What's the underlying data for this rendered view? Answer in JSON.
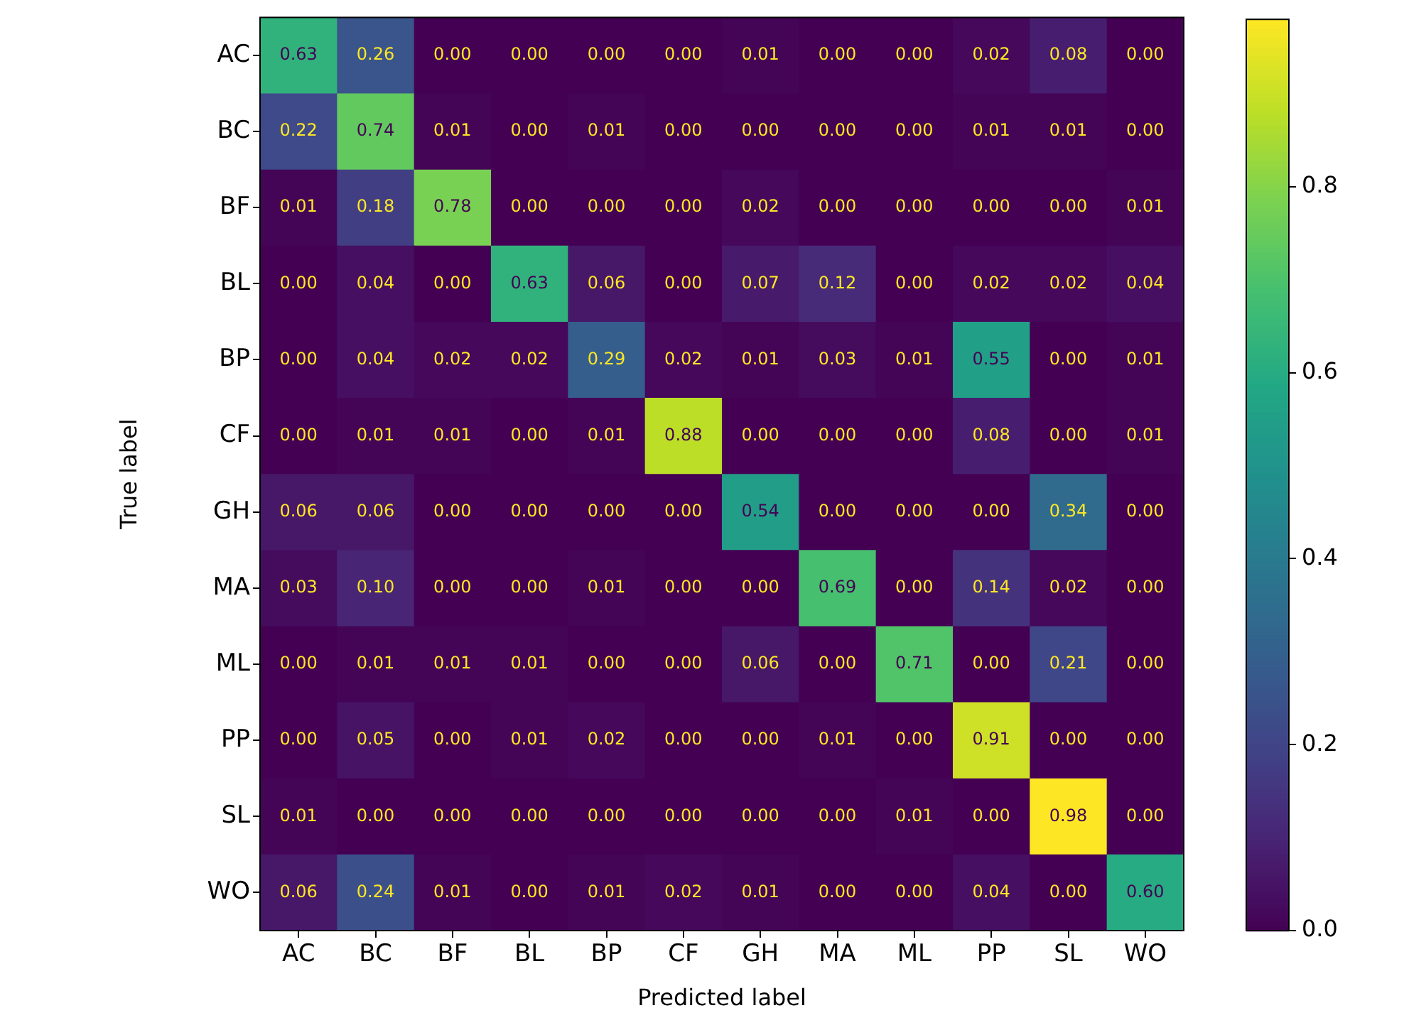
{
  "chart_data": {
    "type": "heatmap",
    "xlabel": "Predicted label",
    "ylabel": "True label",
    "categories": [
      "AC",
      "BC",
      "BF",
      "BL",
      "BP",
      "CF",
      "GH",
      "MA",
      "ML",
      "PP",
      "SL",
      "WO"
    ],
    "y_categories": [
      "AC",
      "BC",
      "BF",
      "BL",
      "BP",
      "CF",
      "GH",
      "MA",
      "ML",
      "PP",
      "SL",
      "WO"
    ],
    "cells": [
      [
        0.63,
        0.26,
        0,
        0,
        0,
        0,
        0.01,
        0,
        0,
        0.02,
        0.08,
        0
      ],
      [
        0.22,
        0.74,
        0.01,
        0,
        0.01,
        0,
        0,
        0,
        0,
        0.01,
        0.01,
        0
      ],
      [
        0.01,
        0.18,
        0.78,
        0,
        0,
        0,
        0.02,
        0,
        0,
        0,
        0,
        0.01
      ],
      [
        0,
        0.04,
        0,
        0.63,
        0.06,
        0,
        0.07,
        0.12,
        0,
        0.02,
        0.02,
        0.04
      ],
      [
        0,
        0.04,
        0.02,
        0.02,
        0.29,
        0.02,
        0.01,
        0.03,
        0.01,
        0.55,
        0,
        0.01
      ],
      [
        0,
        0.01,
        0.01,
        0,
        0.01,
        0.88,
        0,
        0,
        0,
        0.08,
        0,
        0.01
      ],
      [
        0.06,
        0.06,
        0,
        0,
        0,
        0,
        0.54,
        0,
        0,
        0,
        0.34,
        0
      ],
      [
        0.03,
        0.1,
        0,
        0,
        0.01,
        0,
        0,
        0.69,
        0,
        0.14,
        0.02,
        0
      ],
      [
        0,
        0.01,
        0.01,
        0.01,
        0,
        0,
        0.06,
        0,
        0.71,
        0,
        0.21,
        0
      ],
      [
        0,
        0.05,
        0,
        0.01,
        0.02,
        0,
        0,
        0.01,
        0,
        0.91,
        0,
        0
      ],
      [
        0.01,
        0,
        0,
        0,
        0,
        0,
        0,
        0,
        0.01,
        0,
        0.98,
        0
      ],
      [
        0.06,
        0.24,
        0.01,
        0,
        0.01,
        0.02,
        0.01,
        0,
        0,
        0.04,
        0,
        0.6
      ]
    ],
    "cell_labels": [
      [
        "0.63",
        "0.26",
        "0.00",
        "0.00",
        "0.00",
        "0.00",
        "0.01",
        "0.00",
        "0.00",
        "0.02",
        "0.08",
        "0.00"
      ],
      [
        "0.22",
        "0.74",
        "0.01",
        "0.00",
        "0.01",
        "0.00",
        "0.00",
        "0.00",
        "0.00",
        "0.01",
        "0.01",
        "0.00"
      ],
      [
        "0.01",
        "0.18",
        "0.78",
        "0.00",
        "0.00",
        "0.00",
        "0.02",
        "0.00",
        "0.00",
        "0.00",
        "0.00",
        "0.01"
      ],
      [
        "0.00",
        "0.04",
        "0.00",
        "0.63",
        "0.06",
        "0.00",
        "0.07",
        "0.12",
        "0.00",
        "0.02",
        "0.02",
        "0.04"
      ],
      [
        "0.00",
        "0.04",
        "0.02",
        "0.02",
        "0.29",
        "0.02",
        "0.01",
        "0.03",
        "0.01",
        "0.55",
        "0.00",
        "0.01"
      ],
      [
        "0.00",
        "0.01",
        "0.01",
        "0.00",
        "0.01",
        "0.88",
        "0.00",
        "0.00",
        "0.00",
        "0.08",
        "0.00",
        "0.01"
      ],
      [
        "0.06",
        "0.06",
        "0.00",
        "0.00",
        "0.00",
        "0.00",
        "0.54",
        "0.00",
        "0.00",
        "0.00",
        "0.34",
        "0.00"
      ],
      [
        "0.03",
        "0.10",
        "0.00",
        "0.00",
        "0.01",
        "0.00",
        "0.00",
        "0.69",
        "0.00",
        "0.14",
        "0.02",
        "0.00"
      ],
      [
        "0.00",
        "0.01",
        "0.01",
        "0.01",
        "0.00",
        "0.00",
        "0.06",
        "0.00",
        "0.71",
        "0.00",
        "0.21",
        "0.00"
      ],
      [
        "0.00",
        "0.05",
        "0.00",
        "0.01",
        "0.02",
        "0.00",
        "0.00",
        "0.01",
        "0.00",
        "0.91",
        "0.00",
        "0.00"
      ],
      [
        "0.01",
        "0.00",
        "0.00",
        "0.00",
        "0.00",
        "0.00",
        "0.00",
        "0.00",
        "0.01",
        "0.00",
        "0.98",
        "0.00"
      ],
      [
        "0.06",
        "0.24",
        "0.01",
        "0.00",
        "0.01",
        "0.02",
        "0.01",
        "0.00",
        "0.00",
        "0.04",
        "0.00",
        "0.60"
      ]
    ],
    "clim": [
      0,
      0.98
    ],
    "cticks": [
      {
        "value": 0,
        "label": "0.0"
      },
      {
        "value": 0.2,
        "label": "0.2"
      },
      {
        "value": 0.4,
        "label": "0.4"
      },
      {
        "value": 0.6,
        "label": "0.6"
      },
      {
        "value": 0.8,
        "label": "0.8"
      }
    ]
  }
}
